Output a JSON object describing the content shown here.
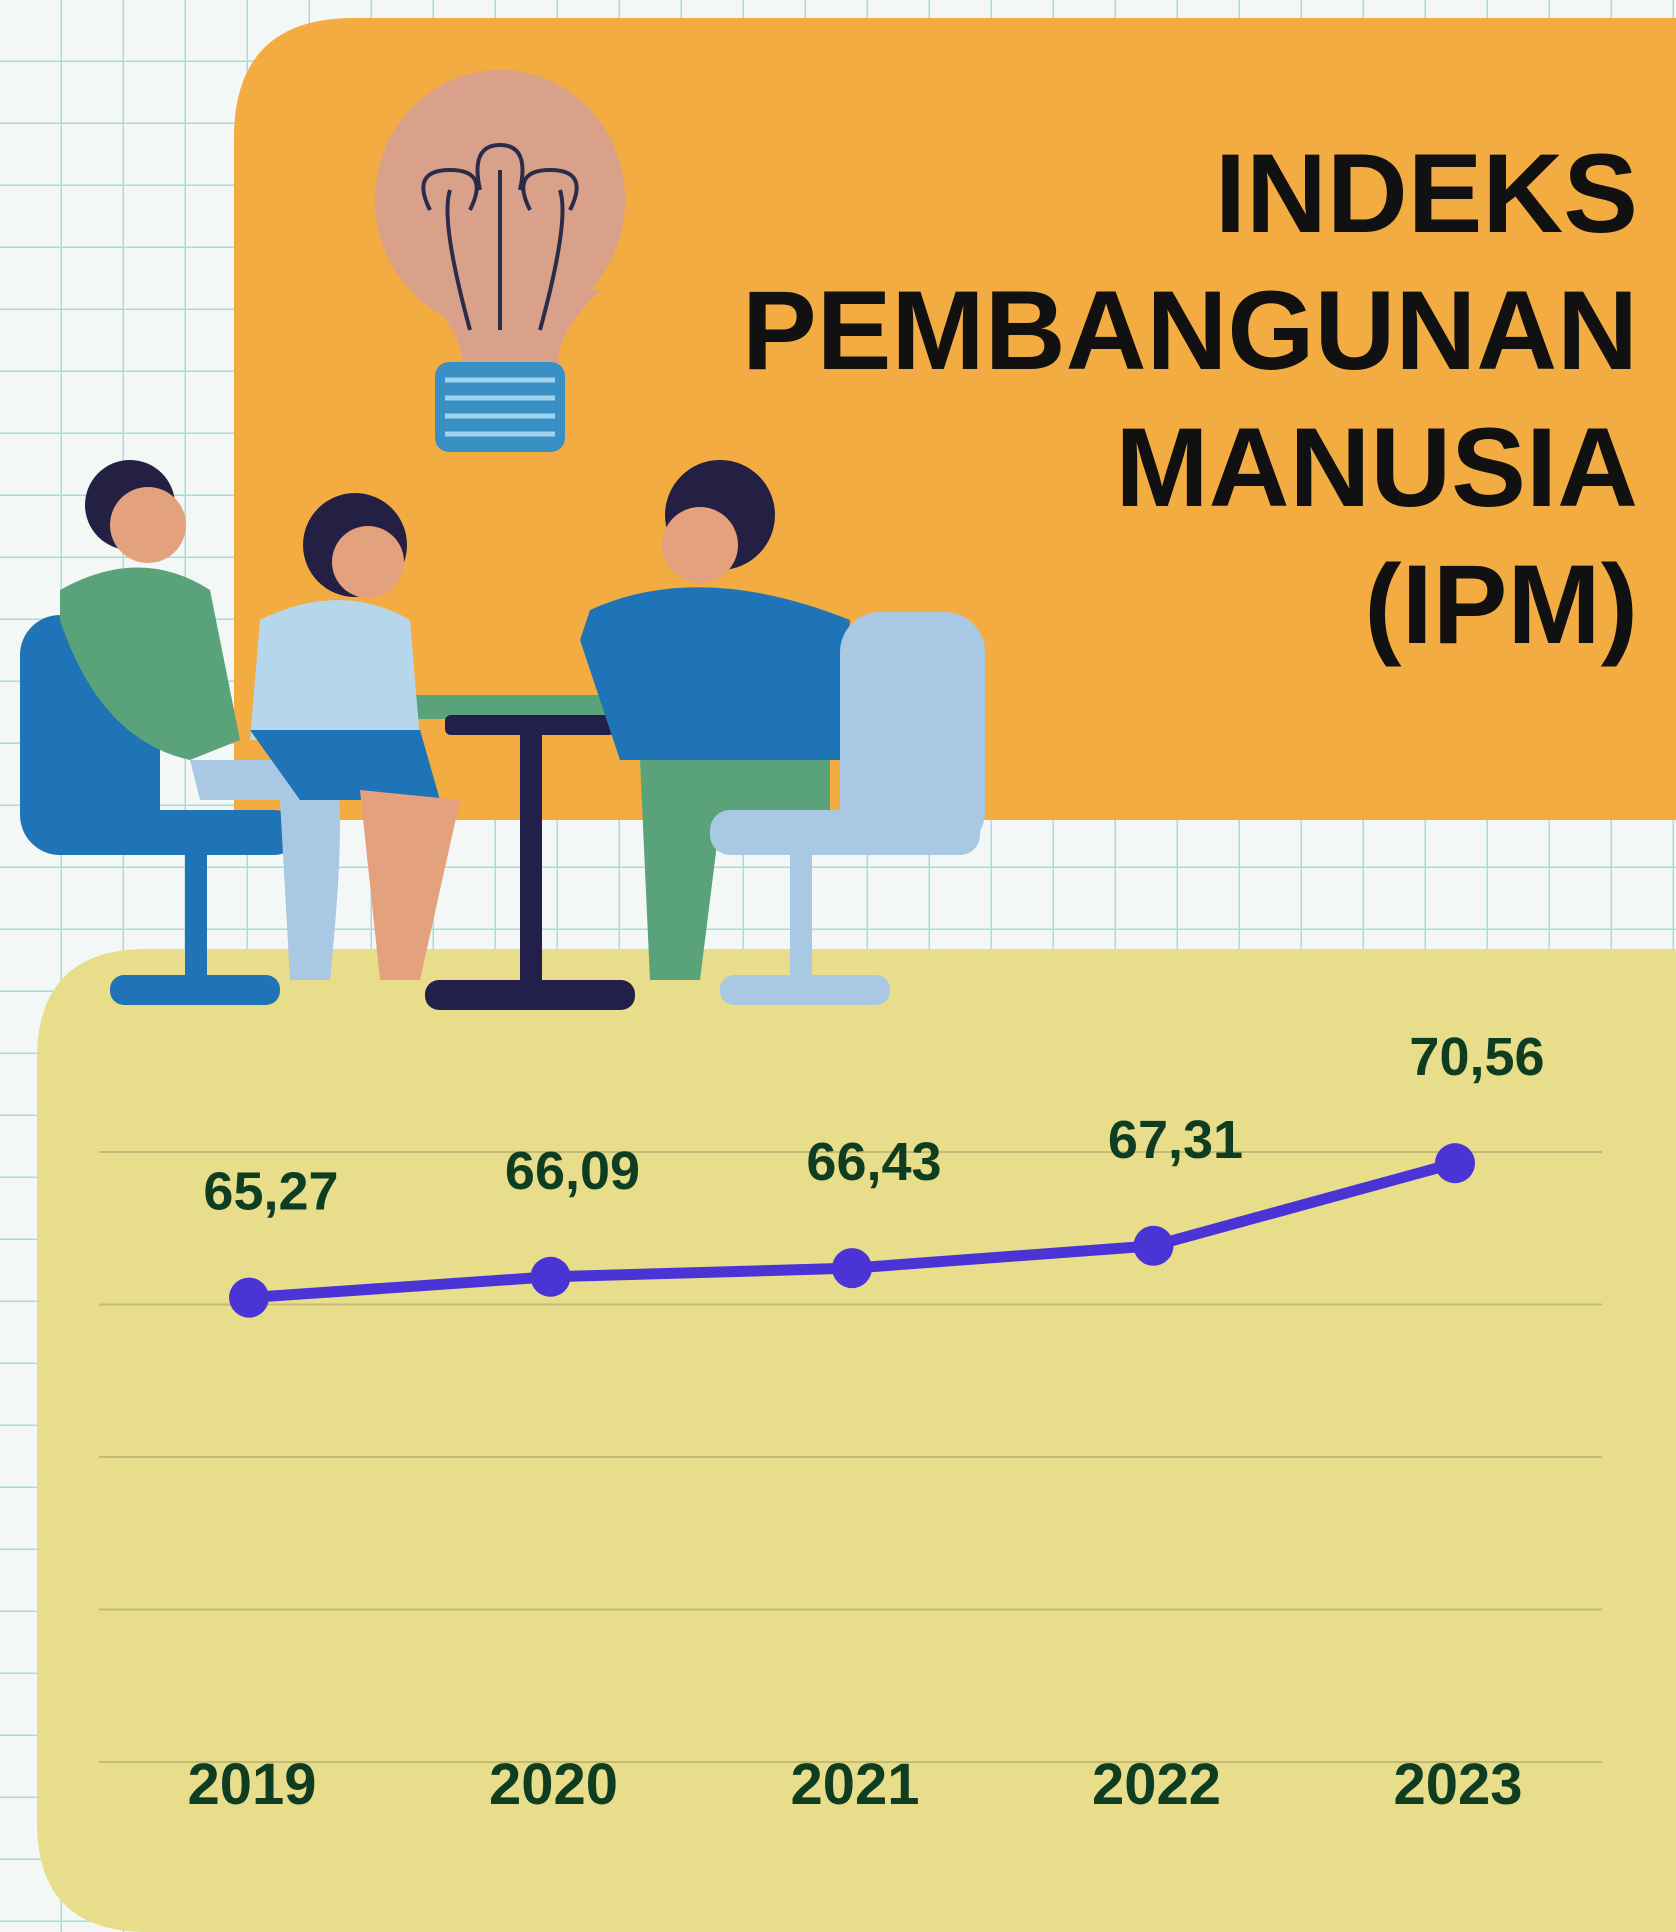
{
  "chart_data": {
    "type": "line",
    "title": [
      "INDEKS",
      "PEMBANGUNAN",
      "MANUSIA",
      "(IPM)"
    ],
    "categories": [
      "2019",
      "2020",
      "2021",
      "2022",
      "2023"
    ],
    "values": [
      65.27,
      66.09,
      66.43,
      67.31,
      70.56
    ],
    "value_labels": [
      "65,27",
      "66,09",
      "66,43",
      "67,31",
      "70,56"
    ],
    "color": "#4b34d6",
    "ylim": [
      47,
      71
    ],
    "yticks": [
      47,
      53,
      59,
      65,
      71
    ],
    "grid": true
  }
}
